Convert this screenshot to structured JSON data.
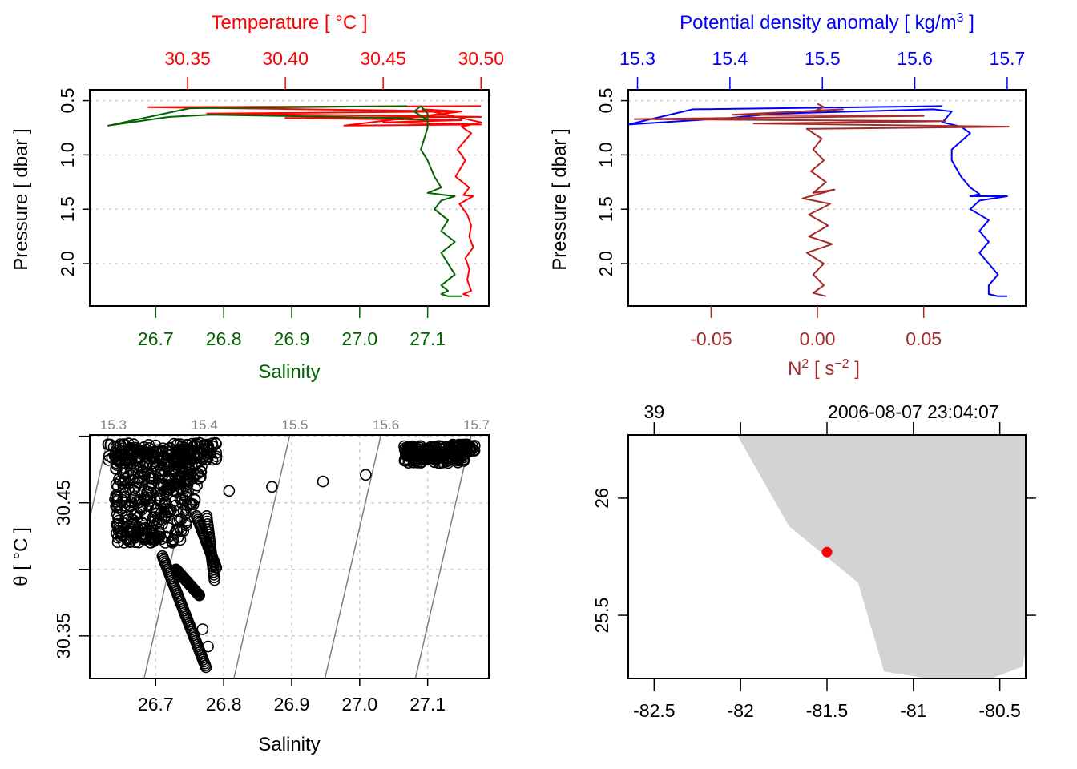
{
  "chart_data": [
    {
      "id": "ts_profile",
      "type": "line",
      "title": "",
      "top_axis": {
        "label": "Temperature [ °C ]",
        "color": "#ff0000",
        "ticks": [
          "30.35",
          "30.40",
          "30.45",
          "30.50"
        ],
        "tick_values": [
          30.35,
          30.4,
          30.45,
          30.5
        ],
        "range": [
          30.3,
          30.504
        ]
      },
      "bottom_axis": {
        "label": "Salinity",
        "color": "#006400",
        "ticks": [
          "26.7",
          "26.8",
          "26.9",
          "27.0",
          "27.1"
        ],
        "tick_values": [
          26.7,
          26.8,
          26.9,
          27.0,
          27.1
        ],
        "range": [
          26.603,
          27.19
        ]
      },
      "ylabel": "Pressure [ dbar ]",
      "ylim": [
        2.39,
        0.4
      ],
      "yticks": [
        "0.5",
        "1.0",
        "1.5",
        "2.0"
      ],
      "ytick_values": [
        0.5,
        1.0,
        1.5,
        2.0
      ],
      "grid": "horizontal-dotted",
      "series": [
        {
          "name": "Temperature",
          "color": "#ff0000",
          "axis": "top",
          "x": [
            30.5,
            30.33,
            30.49,
            30.36,
            30.5,
            30.4,
            30.49,
            30.45,
            30.5,
            30.43,
            30.49,
            30.47,
            30.5,
            30.49,
            30.495,
            30.488,
            30.492,
            30.487,
            30.494,
            30.491,
            30.496,
            30.489,
            30.493,
            30.495,
            30.494,
            30.496,
            30.492,
            30.494,
            30.493,
            30.495,
            30.491,
            30.494
          ],
          "y": [
            0.55,
            0.56,
            0.6,
            0.62,
            0.65,
            0.66,
            0.68,
            0.7,
            0.72,
            0.73,
            0.6,
            0.58,
            0.7,
            0.74,
            0.8,
            0.95,
            1.05,
            1.2,
            1.3,
            1.37,
            1.38,
            1.45,
            1.55,
            1.65,
            1.75,
            1.85,
            1.95,
            2.05,
            2.15,
            2.25,
            2.28,
            2.3
          ]
        },
        {
          "name": "Salinity",
          "color": "#006400",
          "axis": "bottom",
          "x": [
            27.07,
            26.75,
            26.63,
            26.72,
            26.78,
            27.06,
            27.1,
            27.08,
            27.09,
            27.1,
            27.1,
            27.09,
            27.1,
            27.11,
            27.12,
            27.1,
            27.14,
            27.12,
            27.11,
            27.13,
            27.12,
            27.14,
            27.12,
            27.13,
            27.14,
            27.12,
            27.13,
            27.12,
            27.13,
            27.15
          ],
          "y": [
            0.55,
            0.57,
            0.73,
            0.65,
            0.63,
            0.66,
            0.68,
            0.6,
            0.55,
            0.62,
            0.75,
            0.95,
            1.05,
            1.2,
            1.3,
            1.35,
            1.38,
            1.42,
            1.5,
            1.6,
            1.7,
            1.8,
            1.9,
            2.0,
            2.1,
            2.2,
            2.25,
            2.28,
            2.3,
            2.3
          ]
        }
      ]
    },
    {
      "id": "density_n2_profile",
      "type": "line",
      "title": "",
      "top_axis": {
        "label": "Potential density anomaly [ kg/m³ ]",
        "color": "#0000ff",
        "ticks": [
          "15.3",
          "15.4",
          "15.5",
          "15.6",
          "15.7"
        ],
        "tick_values": [
          15.3,
          15.4,
          15.5,
          15.6,
          15.7
        ],
        "range": [
          15.29,
          15.72
        ]
      },
      "bottom_axis": {
        "label": "N² [ s⁻² ]",
        "color": "#a52a2a",
        "ticks": [
          "-0.05",
          "0.00",
          "0.05"
        ],
        "tick_values": [
          -0.05,
          0.0,
          0.05
        ],
        "range": [
          -0.089,
          0.098
        ]
      },
      "ylabel": "Pressure [ dbar ]",
      "ylim": [
        2.39,
        0.4
      ],
      "yticks": [
        "0.5",
        "1.0",
        "1.5",
        "2.0"
      ],
      "ytick_values": [
        0.5,
        1.0,
        1.5,
        2.0
      ],
      "grid": "horizontal-dotted",
      "series": [
        {
          "name": "Potential density anomaly",
          "color": "#0000ff",
          "axis": "top",
          "x": [
            15.63,
            15.36,
            15.29,
            15.4,
            15.45,
            15.62,
            15.64,
            15.63,
            15.65,
            15.66,
            15.64,
            15.64,
            15.65,
            15.66,
            15.67,
            15.66,
            15.7,
            15.67,
            15.66,
            15.68,
            15.67,
            15.68,
            15.67,
            15.68,
            15.69,
            15.68,
            15.68,
            15.69,
            15.7
          ],
          "y": [
            0.55,
            0.58,
            0.72,
            0.66,
            0.62,
            0.58,
            0.6,
            0.7,
            0.74,
            0.8,
            0.95,
            1.05,
            1.2,
            1.3,
            1.36,
            1.38,
            1.38,
            1.42,
            1.5,
            1.6,
            1.7,
            1.8,
            1.9,
            2.0,
            2.1,
            2.2,
            2.28,
            2.3,
            2.3
          ]
        },
        {
          "name": "N2",
          "color": "#a52a2a",
          "axis": "bottom",
          "x": [
            0.0,
            0.003,
            -0.002,
            0.012,
            -0.04,
            0.05,
            -0.086,
            0.06,
            -0.03,
            0.09,
            -0.005,
            0.002,
            -0.002,
            0.003,
            -0.003,
            0.004,
            -0.002,
            0.008,
            -0.007,
            0.006,
            -0.004,
            0.005,
            -0.004,
            0.007,
            -0.005,
            0.003,
            -0.002,
            0.003,
            -0.002,
            0.004
          ],
          "y": [
            0.53,
            0.56,
            0.6,
            0.58,
            0.63,
            0.64,
            0.67,
            0.69,
            0.71,
            0.74,
            0.76,
            0.85,
            0.95,
            1.05,
            1.15,
            1.25,
            1.35,
            1.32,
            1.4,
            1.45,
            1.55,
            1.65,
            1.75,
            1.82,
            1.9,
            2.0,
            2.1,
            2.2,
            2.27,
            2.3
          ]
        }
      ]
    },
    {
      "id": "ts_diagram",
      "type": "scatter",
      "title": "",
      "xlabel": "Salinity",
      "ylabel": "θ [ °C ]",
      "xlim": [
        26.603,
        27.19
      ],
      "ylim": [
        30.318,
        30.501
      ],
      "xticks": [
        "26.7",
        "26.8",
        "26.9",
        "27.0",
        "27.1"
      ],
      "xtick_values": [
        26.7,
        26.8,
        26.9,
        27.0,
        27.1
      ],
      "yticks": [
        "30.35",
        "30.45"
      ],
      "ytick_values": [
        30.35,
        30.45
      ],
      "minor_ytick_values": [
        30.4,
        30.5
      ],
      "grid": "dotted",
      "isopycnals": {
        "color": "#7f7f7f",
        "labels": [
          "15.3",
          "15.4",
          "15.5",
          "15.6",
          "15.7"
        ],
        "values": [
          15.3,
          15.4,
          15.5,
          15.6,
          15.7
        ]
      },
      "points": {
        "marker": "open-circle",
        "color": "#000000",
        "clusters": [
          {
            "name": "fresh-cluster",
            "s_range": [
              26.63,
              26.79
            ],
            "t_range": [
              30.33,
              30.49
            ]
          },
          {
            "name": "salty-cluster",
            "s_range": [
              27.06,
              27.17
            ],
            "t_range": [
              30.48,
              30.495
            ]
          }
        ],
        "isolated": [
          {
            "s": 26.808,
            "t": 30.459
          },
          {
            "s": 26.871,
            "t": 30.462
          },
          {
            "s": 26.946,
            "t": 30.466
          },
          {
            "s": 27.009,
            "t": 30.471
          }
        ]
      }
    },
    {
      "id": "station_map",
      "type": "map",
      "title": "",
      "xlim": [
        -82.65,
        -80.35
      ],
      "ylim": [
        25.23,
        26.27
      ],
      "xticks": [
        "-82.5",
        "-82",
        "-81.5",
        "-81",
        "-80.5"
      ],
      "xtick_values": [
        -82.5,
        -82.0,
        -81.5,
        -81.0,
        -80.5
      ],
      "yticks": [
        "25.5",
        "26"
      ],
      "ytick_values": [
        25.5,
        26.0
      ],
      "top_labels": {
        "station": "39",
        "time": "2006-08-07 23:04:07"
      },
      "land_color": "#d3d3d3",
      "coastline": [
        [
          -82.02,
          26.27
        ],
        [
          -81.72,
          25.88
        ],
        [
          -81.32,
          25.64
        ],
        [
          -81.17,
          25.26
        ],
        [
          -80.92,
          25.23
        ],
        [
          -80.55,
          25.23
        ],
        [
          -80.37,
          25.28
        ],
        [
          -80.35,
          25.35
        ],
        [
          -80.35,
          26.27
        ]
      ],
      "station": {
        "lon": -81.5,
        "lat": 25.77,
        "color": "#ff0000"
      }
    }
  ]
}
